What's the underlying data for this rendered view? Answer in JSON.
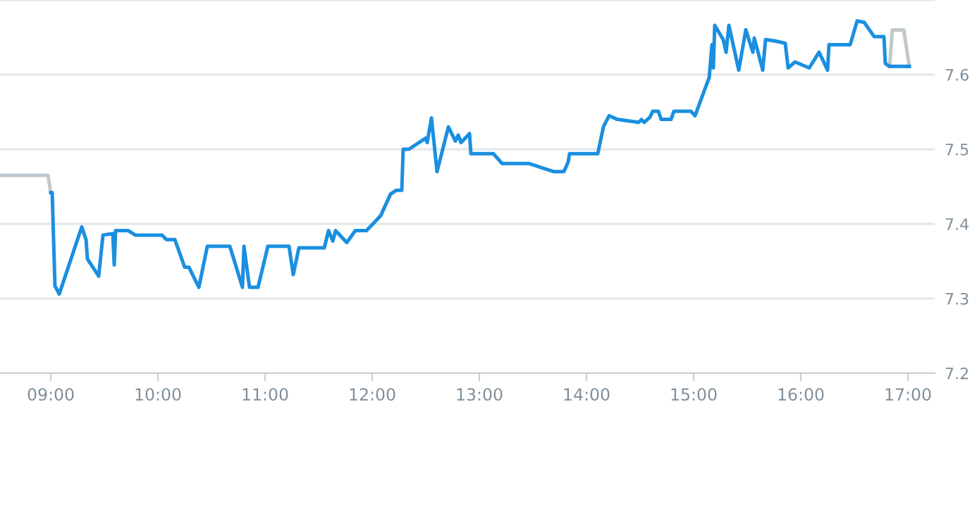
{
  "chart_data": {
    "type": "line",
    "xlim": [
      8.526,
      17.25
    ],
    "ylim": [
      7.2,
      7.7
    ],
    "xticks": [
      {
        "value": 9,
        "label": "09:00"
      },
      {
        "value": 10,
        "label": "10:00"
      },
      {
        "value": 11,
        "label": "11:00"
      },
      {
        "value": 12,
        "label": "12:00"
      },
      {
        "value": 13,
        "label": "13:00"
      },
      {
        "value": 14,
        "label": "14:00"
      },
      {
        "value": 15,
        "label": "15:00"
      },
      {
        "value": 16,
        "label": "16:00"
      },
      {
        "value": 17,
        "label": "17:00"
      }
    ],
    "yticks": [
      7.2,
      7.3,
      7.4,
      7.5,
      7.6,
      {
        "value": 7.7,
        "label": null
      }
    ],
    "grid": "y",
    "marker": "none",
    "line_style": "solid",
    "series": [
      {
        "color": "#bfc8cc",
        "x": [
          8.526,
          8.974,
          9.0
        ],
        "values": [
          7.465,
          7.465,
          7.442
        ]
      },
      {
        "color": "#bfc8cc",
        "x": [
          16.829,
          16.855,
          16.961,
          17.013
        ],
        "values": [
          7.611,
          7.66,
          7.66,
          7.611
        ]
      },
      {
        "color": "#1a8fe0",
        "x": [
          9.0,
          9.013,
          9.039,
          9.079,
          9.289,
          9.329,
          9.342,
          9.447,
          9.487,
          9.579,
          9.592,
          9.605,
          9.724,
          9.789,
          10.039,
          10.079,
          10.158,
          10.25,
          10.289,
          10.382,
          10.461,
          10.671,
          10.789,
          10.803,
          10.855,
          10.934,
          11.026,
          11.224,
          11.263,
          11.316,
          11.553,
          11.592,
          11.632,
          11.658,
          11.763,
          11.842,
          11.947,
          12.079,
          12.171,
          12.224,
          12.276,
          12.289,
          12.342,
          12.5,
          12.513,
          12.553,
          12.605,
          12.711,
          12.776,
          12.803,
          12.829,
          12.908,
          12.921,
          13.132,
          13.211,
          13.461,
          13.697,
          13.789,
          13.829,
          13.842,
          14.105,
          14.158,
          14.211,
          14.289,
          14.487,
          14.513,
          14.539,
          14.592,
          14.618,
          14.671,
          14.697,
          14.789,
          14.816,
          14.974,
          15.013,
          15.145,
          15.171,
          15.184,
          15.197,
          15.276,
          15.303,
          15.329,
          15.421,
          15.487,
          15.553,
          15.566,
          15.645,
          15.671,
          15.763,
          15.855,
          15.882,
          15.947,
          16.079,
          16.171,
          16.25,
          16.263,
          16.461,
          16.526,
          16.592,
          16.684,
          16.776,
          16.789,
          16.829,
          17.013
        ],
        "values": [
          7.442,
          7.442,
          7.317,
          7.306,
          7.396,
          7.379,
          7.353,
          7.33,
          7.385,
          7.387,
          7.345,
          7.391,
          7.391,
          7.385,
          7.385,
          7.379,
          7.379,
          7.342,
          7.342,
          7.315,
          7.37,
          7.37,
          7.315,
          7.37,
          7.315,
          7.315,
          7.37,
          7.37,
          7.332,
          7.368,
          7.368,
          7.391,
          7.377,
          7.391,
          7.375,
          7.391,
          7.391,
          7.411,
          7.44,
          7.445,
          7.445,
          7.5,
          7.5,
          7.515,
          7.509,
          7.542,
          7.47,
          7.53,
          7.511,
          7.519,
          7.509,
          7.521,
          7.494,
          7.494,
          7.481,
          7.481,
          7.47,
          7.47,
          7.483,
          7.494,
          7.494,
          7.53,
          7.545,
          7.54,
          7.536,
          7.54,
          7.536,
          7.543,
          7.551,
          7.551,
          7.54,
          7.54,
          7.551,
          7.551,
          7.545,
          7.596,
          7.64,
          7.609,
          7.666,
          7.647,
          7.63,
          7.666,
          7.606,
          7.66,
          7.63,
          7.649,
          7.606,
          7.647,
          7.645,
          7.642,
          7.609,
          7.617,
          7.609,
          7.63,
          7.606,
          7.64,
          7.64,
          7.672,
          7.67,
          7.651,
          7.651,
          7.615,
          7.611,
          7.611
        ]
      }
    ]
  }
}
